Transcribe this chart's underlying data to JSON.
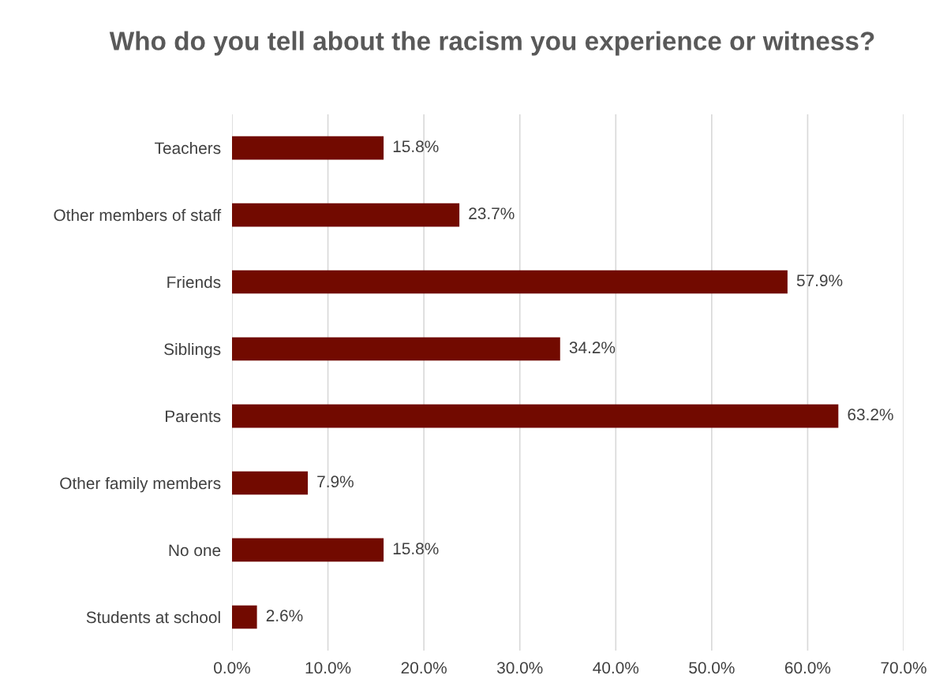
{
  "chart_data": {
    "type": "bar",
    "orientation": "horizontal",
    "title": "Who do you tell about the racism you experience or witness?",
    "categories": [
      "Teachers",
      "Other members of staff",
      "Friends",
      "Siblings",
      "Parents",
      "Other family members",
      "No one",
      "Students at school"
    ],
    "values": [
      15.8,
      23.7,
      57.9,
      34.2,
      63.2,
      7.9,
      15.8,
      2.6
    ],
    "value_labels": [
      "15.8%",
      "23.7%",
      "57.9%",
      "34.2%",
      "63.2%",
      "7.9%",
      "15.8%",
      "2.6%"
    ],
    "color": "#720a00",
    "xlim": [
      0,
      70
    ],
    "xticks": [
      {
        "value": 0,
        "label": "0.0%"
      },
      {
        "value": 10,
        "label": "10.0%"
      },
      {
        "value": 20,
        "label": "20.0%"
      },
      {
        "value": 30,
        "label": "30.0%"
      },
      {
        "value": 40,
        "label": "40.0%"
      },
      {
        "value": 50,
        "label": "50.0%"
      },
      {
        "value": 60,
        "label": "60.0%"
      },
      {
        "value": 70,
        "label": "70.0%"
      }
    ],
    "grid": "x"
  }
}
